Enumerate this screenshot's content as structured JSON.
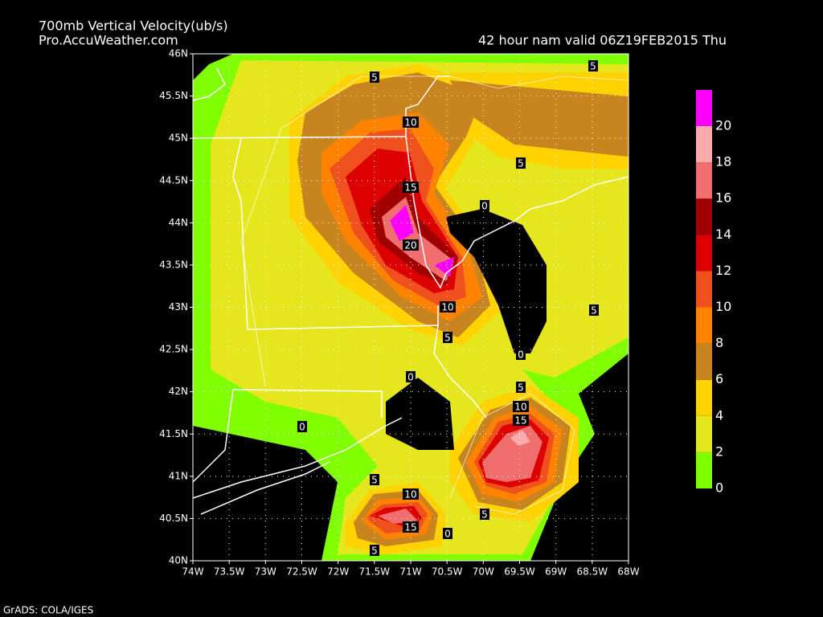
{
  "header": {
    "title": "700mb Vertical Velocity(ub/s)",
    "source": "Pro.AccuWeather.com",
    "valid": "42 hour nam valid  06Z19FEB2015  Thu"
  },
  "footer": "GrADS: COLA/IGES",
  "lon_labels": [
    "74W",
    "73.5W",
    "73W",
    "72.5W",
    "72W",
    "71.5W",
    "71W",
    "70.5W",
    "70W",
    "69.5W",
    "69W",
    "68.5W",
    "68W"
  ],
  "lat_labels": [
    "40N",
    "40.5N",
    "41N",
    "41.5N",
    "42N",
    "42.5N",
    "43N",
    "43.5N",
    "44N",
    "44.5N",
    "45N",
    "45.5N",
    "46N"
  ],
  "colorbar": {
    "colors": [
      "#80ff00",
      "#e6e61e",
      "#ffd200",
      "#c8841e",
      "#ff8200",
      "#f0501e",
      "#dc0000",
      "#a00000",
      "#f06e6e",
      "#ffaaaa",
      "#ff00ff"
    ],
    "labels": [
      "0",
      "2",
      "4",
      "6",
      "8",
      "10",
      "12",
      "14",
      "16",
      "18",
      "20"
    ]
  },
  "contour_labels": [
    "5",
    "5",
    "10",
    "5",
    "15",
    "0",
    "20",
    "10",
    "5",
    "5",
    "0",
    "0",
    "5",
    "10",
    "15",
    "0",
    "5",
    "10",
    "5",
    "15",
    "0",
    "5"
  ]
}
